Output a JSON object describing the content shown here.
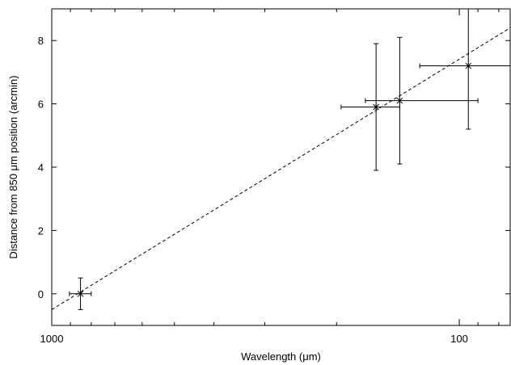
{
  "chart_data": {
    "type": "scatter",
    "xlabel": "Wavelength (μm)",
    "ylabel": "Distance from 850 μm position (arcmin)",
    "x_scale": "log",
    "x_reversed": true,
    "xlim": [
      1000,
      75
    ],
    "ylim": [
      -1,
      9
    ],
    "x_ticks_major": [
      {
        "value": 1000,
        "label": "1000"
      },
      {
        "value": 100,
        "label": "100"
      }
    ],
    "x_ticks_minor": [
      900,
      800,
      700,
      600,
      500,
      400,
      300,
      200,
      90,
      80
    ],
    "y_ticks": [
      {
        "value": 0,
        "label": "0"
      },
      {
        "value": 2,
        "label": "2"
      },
      {
        "value": 4,
        "label": "4"
      },
      {
        "value": 6,
        "label": "6"
      },
      {
        "value": 8,
        "label": "8"
      }
    ],
    "grid": false,
    "points": [
      {
        "x": 850,
        "y": 0.0,
        "xerr_low": 800,
        "xerr_high": 905,
        "yerr_low": -0.5,
        "yerr_high": 0.5
      },
      {
        "x": 160,
        "y": 5.9,
        "xerr_low": 140,
        "xerr_high": 195,
        "yerr_low": 3.9,
        "yerr_high": 7.9
      },
      {
        "x": 140,
        "y": 6.1,
        "xerr_low": 90,
        "xerr_high": 170,
        "yerr_low": 4.1,
        "yerr_high": 8.1
      },
      {
        "x": 95,
        "y": 7.2,
        "xerr_low": 75,
        "xerr_high": 125,
        "yerr_low": 5.2,
        "yerr_high": 9.0
      }
    ],
    "fit_line": {
      "style": "dashed",
      "x": [
        1000,
        75
      ],
      "y": [
        -0.5,
        8.4
      ]
    }
  }
}
